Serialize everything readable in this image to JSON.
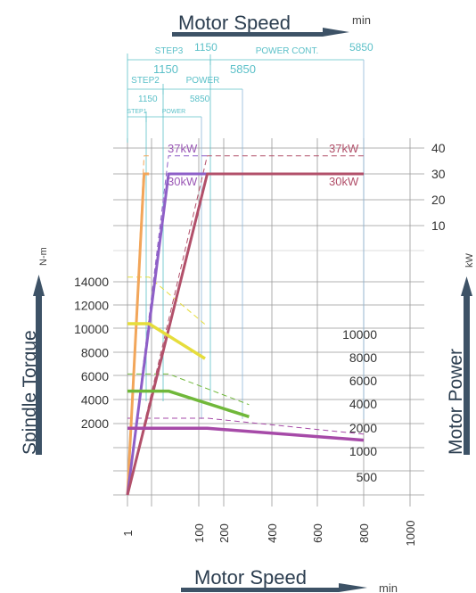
{
  "chart_data": {
    "type": "line",
    "title_top": "Motor Speed",
    "title_top_unit": "min",
    "title_bottom": "Motor Speed",
    "title_bottom_unit": "min",
    "ylabel_left": "Spindle Torque",
    "ylabel_left_unit": "N-m",
    "ylabel_right": "Motor Power",
    "ylabel_right_unit": "kW",
    "x_ticks": [
      "1",
      "100",
      "200",
      "400",
      "600",
      "800",
      "1000"
    ],
    "x_tick_values": [
      1,
      100,
      200,
      400,
      600,
      800,
      1000
    ],
    "torque_ticks_left": [
      "14000",
      "12000",
      "10000",
      "8000",
      "6000",
      "4000",
      "2000"
    ],
    "torque_ticks_right": [
      "10000",
      "8000",
      "6000",
      "4000",
      "2000",
      "1000",
      "500"
    ],
    "power_ticks": [
      "40",
      "30",
      "20",
      "10"
    ],
    "speed_brackets": [
      {
        "name": "STEP3",
        "value": "1150",
        "name2": "POWER CONT.",
        "value2": "5850"
      },
      {
        "name": "STEP2",
        "value": "1150",
        "name2": "POWER",
        "value2": "5850"
      },
      {
        "name": "STEP1",
        "value": "1150",
        "name2": "POWER",
        "value2": "5850"
      }
    ],
    "power_labels": [
      {
        "text": "37kW",
        "color": "#9b59b6"
      },
      {
        "text": "30kW",
        "color": "#9b59b6"
      },
      {
        "text": "37kW",
        "color": "#b2506a"
      },
      {
        "text": "30kW",
        "color": "#b2506a"
      }
    ],
    "torque_series": [
      {
        "color": "#e6dd3c",
        "points": [
          [
            1,
            10450
          ],
          [
            31,
            10450
          ],
          [
            125,
            7500
          ]
        ]
      },
      {
        "color": "#70b83a",
        "points": [
          [
            1,
            4750
          ],
          [
            58,
            4750
          ],
          [
            305,
            2580
          ]
        ]
      },
      {
        "color": "#a64aa8",
        "points": [
          [
            1,
            1600
          ],
          [
            134,
            1600
          ],
          [
            800,
            600
          ]
        ]
      }
    ],
    "torque_dashed": [
      {
        "color": "#e6dd3c",
        "points": [
          [
            1,
            14400
          ],
          [
            31,
            14400
          ],
          [
            125,
            10400
          ]
        ]
      },
      {
        "color": "#70b83a",
        "points": [
          [
            1,
            6200
          ],
          [
            58,
            6200
          ],
          [
            305,
            3600
          ]
        ]
      },
      {
        "color": "#a64aa8",
        "points": [
          [
            1,
            2450
          ],
          [
            134,
            2450
          ],
          [
            800,
            1100
          ]
        ]
      }
    ],
    "power_series": [
      {
        "color": "#f2a65a",
        "points": [
          [
            1,
            0
          ],
          [
            24,
            30
          ],
          [
            31,
            30
          ]
        ]
      },
      {
        "color": "#8e5fc7",
        "points": [
          [
            1,
            0
          ],
          [
            58,
            30
          ],
          [
            134,
            30
          ]
        ]
      },
      {
        "color": "#b2506a",
        "points": [
          [
            1,
            0
          ],
          [
            134,
            30
          ],
          [
            800,
            30
          ]
        ]
      }
    ],
    "power_dashed": [
      {
        "color": "#f2a65a",
        "points": [
          [
            1,
            0
          ],
          [
            24,
            37
          ],
          [
            31,
            37
          ]
        ]
      },
      {
        "color": "#8e5fc7",
        "points": [
          [
            1,
            0
          ],
          [
            58,
            37
          ],
          [
            134,
            37
          ]
        ]
      },
      {
        "color": "#b2506a",
        "points": [
          [
            1,
            0
          ],
          [
            134,
            37
          ],
          [
            800,
            37
          ]
        ]
      }
    ]
  }
}
